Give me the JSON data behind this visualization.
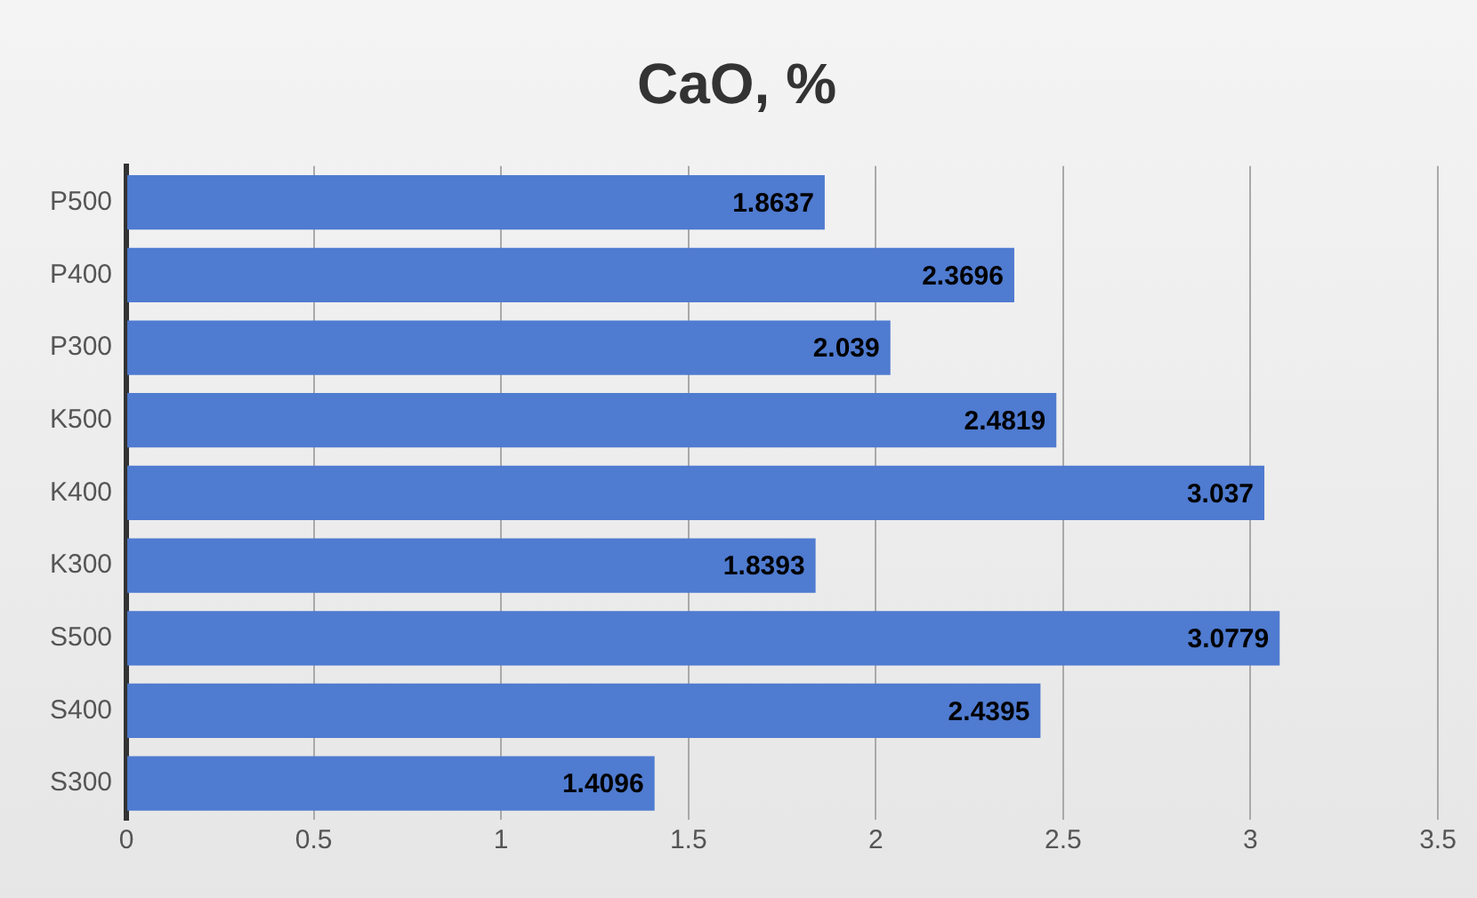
{
  "chart_data": {
    "type": "bar",
    "orientation": "horizontal",
    "title": "CaO, %",
    "categories": [
      "P500",
      "P400",
      "P300",
      "K500",
      "K400",
      "K300",
      "S500",
      "S400",
      "S300"
    ],
    "values": [
      1.8637,
      2.3696,
      2.039,
      2.4819,
      3.037,
      1.8393,
      3.0779,
      2.4395,
      1.4096
    ],
    "color": "#4f7bd0",
    "xlim": [
      0,
      3.5
    ],
    "xticks": [
      0,
      0.5,
      1,
      1.5,
      2,
      2.5,
      3,
      3.5
    ],
    "grid": "x",
    "data_labels": true,
    "legend": false
  }
}
